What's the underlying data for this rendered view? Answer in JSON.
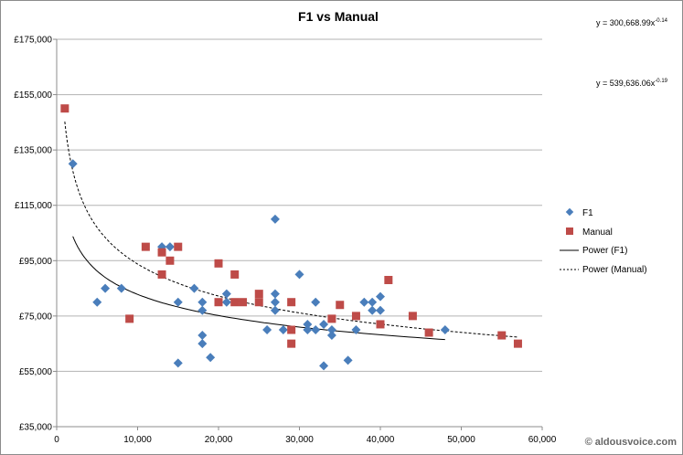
{
  "chart_data": {
    "type": "scatter",
    "title": "F1 vs Manual",
    "xlabel": "",
    "ylabel": "",
    "xlim": [
      0,
      60000
    ],
    "ylim": [
      35000,
      175000
    ],
    "x_ticks": [
      "0",
      "10,000",
      "20,000",
      "30,000",
      "40,000",
      "50,000",
      "60,000"
    ],
    "y_ticks": [
      "£35,000",
      "£55,000",
      "£75,000",
      "£95,000",
      "£115,000",
      "£135,000",
      "£155,000",
      "£175,000"
    ],
    "grid": "horizontal",
    "legend_position": "right",
    "series": [
      {
        "name": "F1",
        "marker": "diamond",
        "color": "#4a7ebb",
        "points": [
          [
            2000,
            130000
          ],
          [
            5000,
            80000
          ],
          [
            6000,
            85000
          ],
          [
            8000,
            85000
          ],
          [
            13000,
            100000
          ],
          [
            14000,
            100000
          ],
          [
            15000,
            80000
          ],
          [
            15000,
            58000
          ],
          [
            17000,
            85000
          ],
          [
            18000,
            80000
          ],
          [
            18000,
            77000
          ],
          [
            18000,
            68000
          ],
          [
            18000,
            65000
          ],
          [
            19000,
            60000
          ],
          [
            21000,
            83000
          ],
          [
            21000,
            80000
          ],
          [
            26000,
            70000
          ],
          [
            27000,
            110000
          ],
          [
            27000,
            83000
          ],
          [
            27000,
            80000
          ],
          [
            27000,
            77000
          ],
          [
            28000,
            70000
          ],
          [
            30000,
            90000
          ],
          [
            31000,
            72000
          ],
          [
            31000,
            70000
          ],
          [
            32000,
            80000
          ],
          [
            32000,
            70000
          ],
          [
            33000,
            72000
          ],
          [
            33000,
            57000
          ],
          [
            34000,
            70000
          ],
          [
            34000,
            68000
          ],
          [
            36000,
            59000
          ],
          [
            37000,
            70000
          ],
          [
            38000,
            80000
          ],
          [
            39000,
            80000
          ],
          [
            39000,
            77000
          ],
          [
            40000,
            82000
          ],
          [
            40000,
            77000
          ],
          [
            48000,
            70000
          ]
        ]
      },
      {
        "name": "Manual",
        "marker": "square",
        "color": "#be4b48",
        "points": [
          [
            1000,
            150000
          ],
          [
            9000,
            74000
          ],
          [
            11000,
            100000
          ],
          [
            13000,
            98000
          ],
          [
            13000,
            90000
          ],
          [
            14000,
            95000
          ],
          [
            15000,
            100000
          ],
          [
            20000,
            94000
          ],
          [
            20000,
            80000
          ],
          [
            22000,
            90000
          ],
          [
            22000,
            80000
          ],
          [
            23000,
            80000
          ],
          [
            25000,
            83000
          ],
          [
            25000,
            80000
          ],
          [
            29000,
            80000
          ],
          [
            29000,
            70000
          ],
          [
            29000,
            65000
          ],
          [
            34000,
            74000
          ],
          [
            35000,
            79000
          ],
          [
            37000,
            75000
          ],
          [
            40000,
            72000
          ],
          [
            41000,
            88000
          ],
          [
            44000,
            75000
          ],
          [
            46000,
            69000
          ],
          [
            55000,
            68000
          ],
          [
            57000,
            65000
          ]
        ]
      }
    ],
    "trendlines": [
      {
        "name": "Power (F1)",
        "style": "solid",
        "color": "#000000",
        "coef": 300668.99,
        "exp": -0.14,
        "x_range": [
          2000,
          48000
        ],
        "equation": "y = 300,668.99x",
        "equation_exp": "-0.14"
      },
      {
        "name": "Power (Manual)",
        "style": "dashed",
        "color": "#000000",
        "coef": 539636.06,
        "exp": -0.19,
        "x_range": [
          1000,
          57000
        ],
        "equation": "y = 539,636.06x",
        "equation_exp": "-0.19"
      }
    ]
  },
  "watermark": "© aldousvoice.com",
  "colors": {
    "border": "#8c8c8c",
    "grid": "#b3b3b3",
    "axis": "#8c8c8c"
  }
}
